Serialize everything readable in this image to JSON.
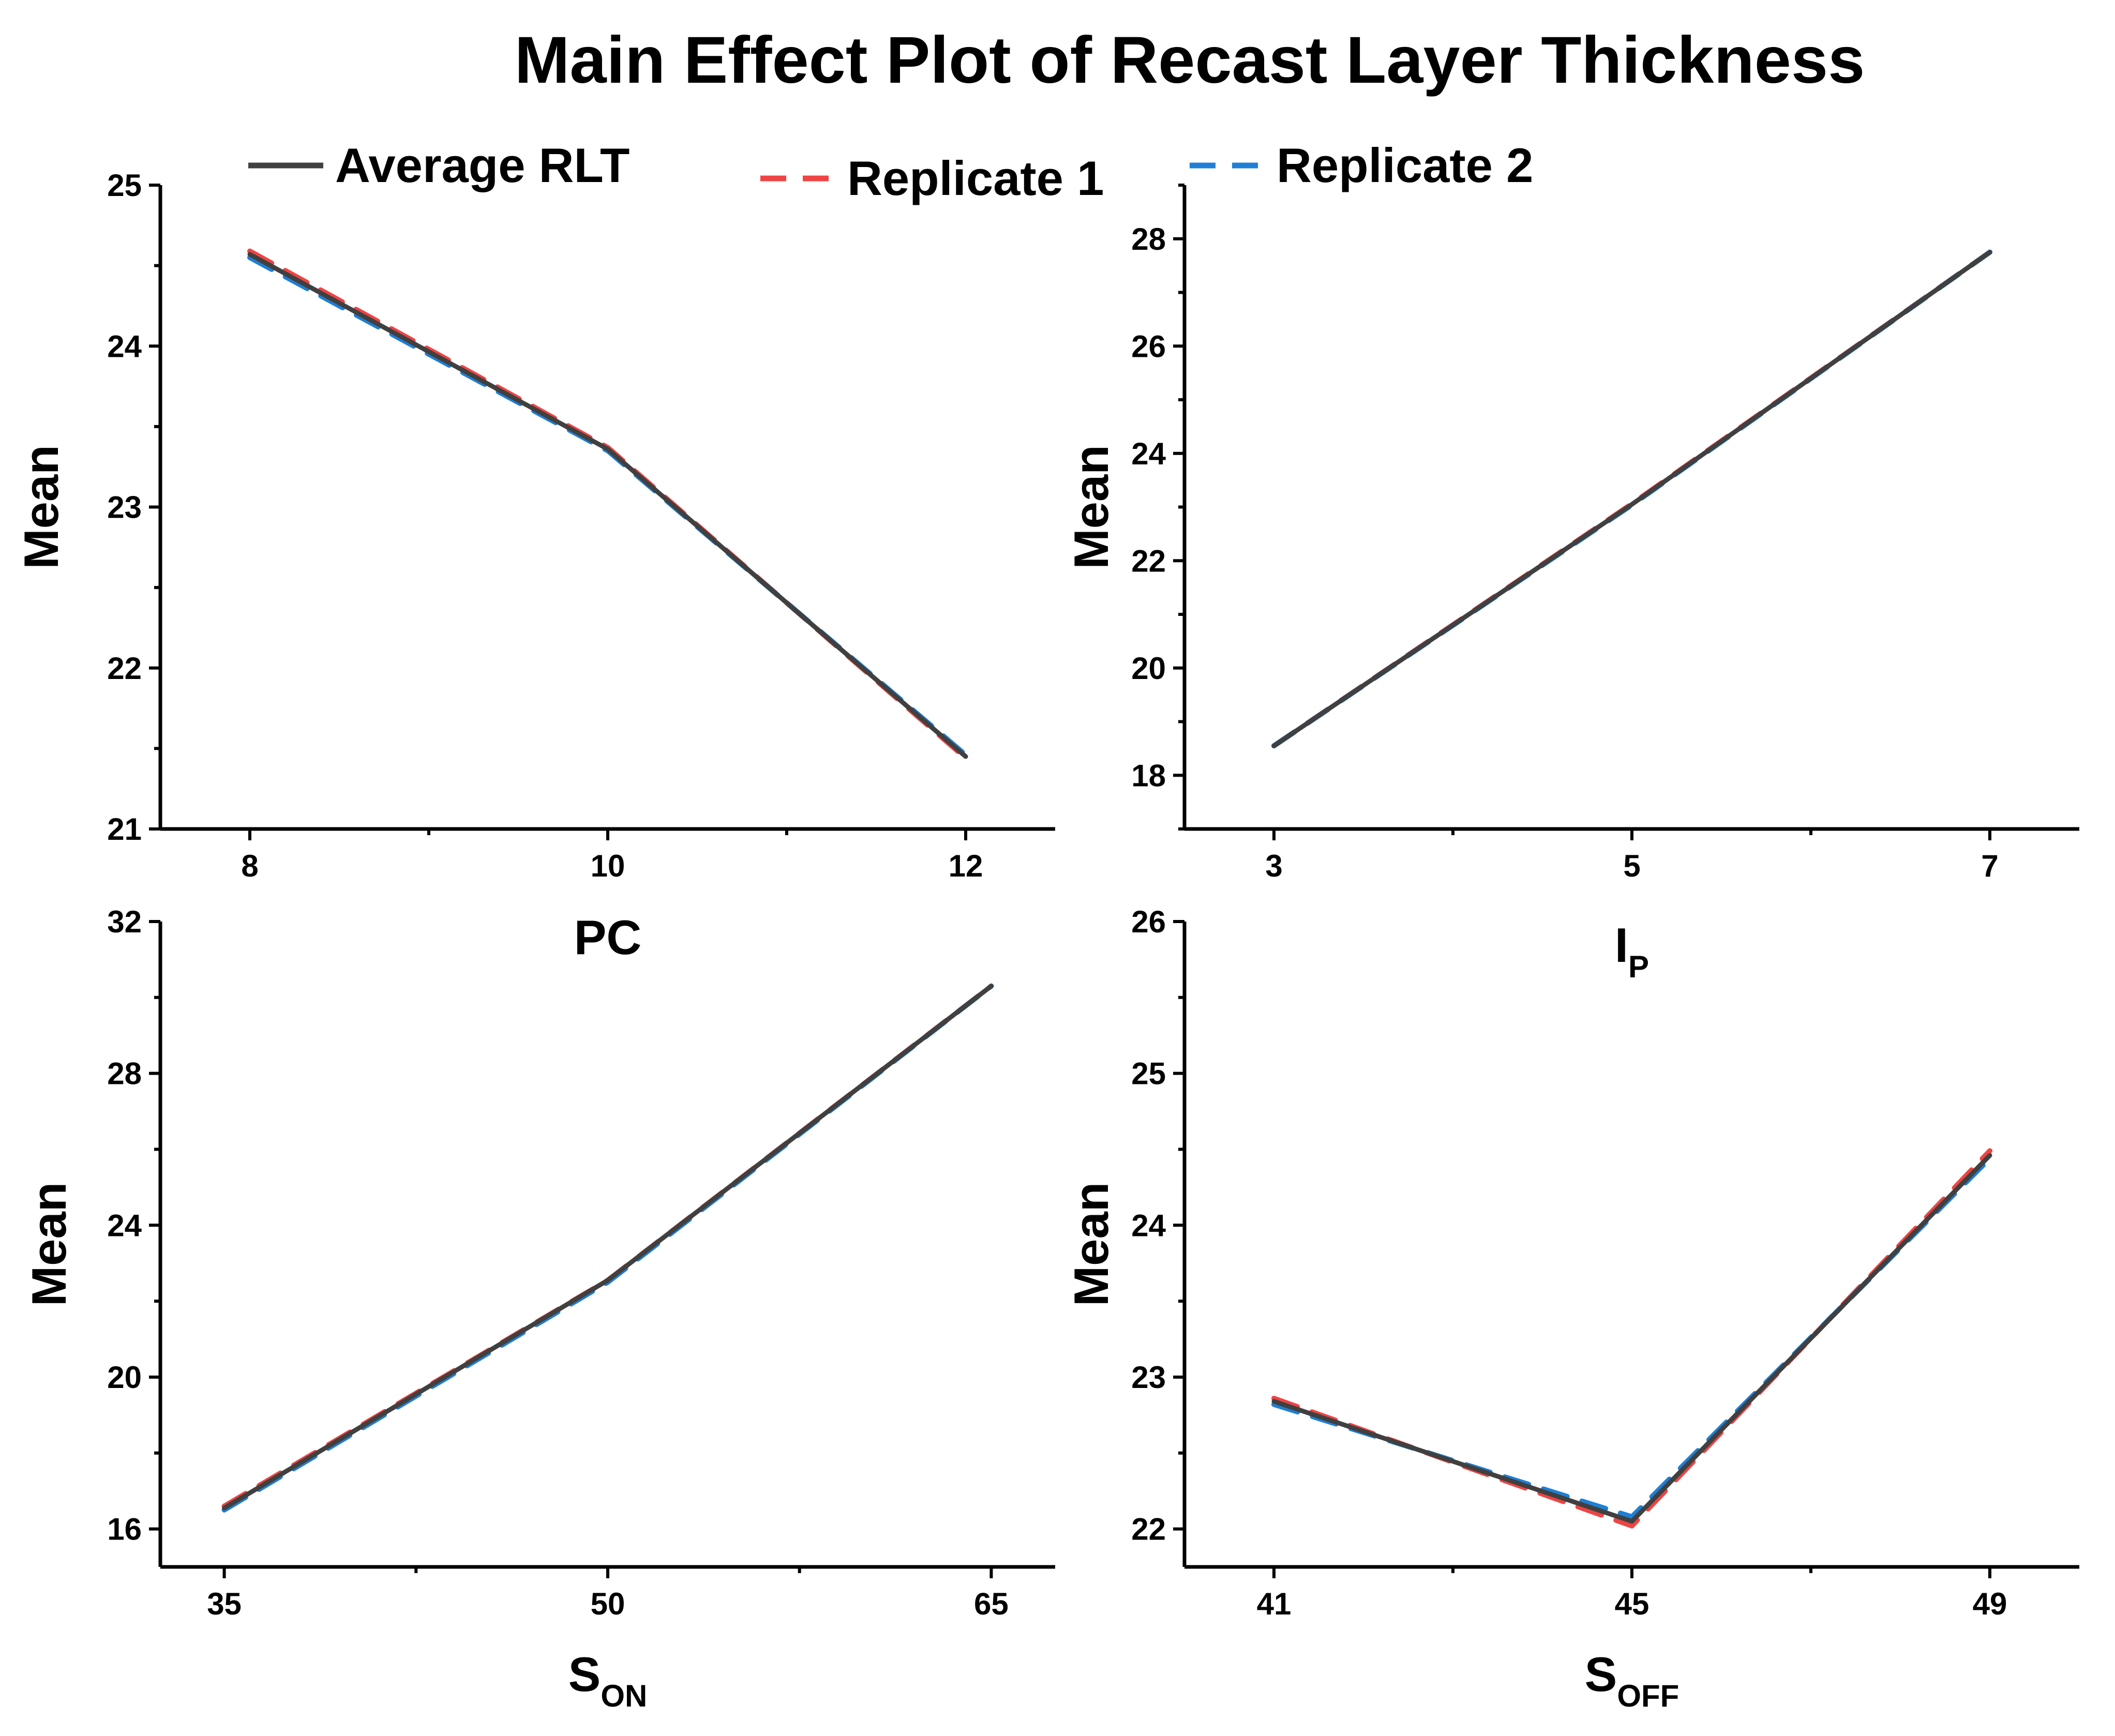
{
  "chart_data": {
    "type": "line",
    "title": "Main Effect Plot of Recast Layer Thickness",
    "legend": {
      "placement": "top",
      "entries": [
        {
          "name": "Average RLT",
          "color": "#404040",
          "style": "solid"
        },
        {
          "name": "Replicate 1",
          "color": "#ef4444",
          "style": "dashed"
        },
        {
          "name": "Replicate 2",
          "color": "#1e7fd6",
          "style": "dashed"
        }
      ]
    },
    "panels": [
      {
        "id": "pc",
        "xlabel": {
          "main": "PC",
          "sub": ""
        },
        "ylabel": "Mean",
        "x": [
          8,
          10,
          12
        ],
        "xticks": [
          "8",
          "10",
          "12"
        ],
        "xlim": [
          7.5,
          12.5
        ],
        "ylim": [
          21,
          25
        ],
        "yticks": [
          21,
          22,
          23,
          24,
          25
        ],
        "series": [
          {
            "name": "Average RLT",
            "values": [
              24.57,
              23.36,
              21.45
            ]
          },
          {
            "name": "Replicate 1",
            "values": [
              24.59,
              23.37,
              21.44
            ]
          },
          {
            "name": "Replicate 2",
            "values": [
              24.55,
              23.35,
              21.46
            ]
          }
        ]
      },
      {
        "id": "ip",
        "xlabel": {
          "main": "I",
          "sub": "P"
        },
        "ylabel": "Mean",
        "x": [
          3,
          5,
          7
        ],
        "xticks": [
          "3",
          "5",
          "7"
        ],
        "xlim": [
          2.5,
          7.5
        ],
        "ylim": [
          17,
          29
        ],
        "yticks": [
          18,
          20,
          22,
          24,
          26,
          28
        ],
        "series": [
          {
            "name": "Average RLT",
            "values": [
              18.55,
              23.05,
              27.75
            ]
          },
          {
            "name": "Replicate 1",
            "values": [
              18.55,
              23.06,
              27.75
            ]
          },
          {
            "name": "Replicate 2",
            "values": [
              18.55,
              23.04,
              27.75
            ]
          }
        ]
      },
      {
        "id": "son",
        "xlabel": {
          "main": "S",
          "sub": "ON"
        },
        "ylabel": "Mean",
        "x": [
          35,
          50,
          65
        ],
        "xticks": [
          "35",
          "50",
          "65"
        ],
        "xlim": [
          32.5,
          67.5
        ],
        "ylim": [
          15,
          32
        ],
        "yticks": [
          16,
          20,
          24,
          28,
          32
        ],
        "series": [
          {
            "name": "Average RLT",
            "values": [
              16.55,
              22.55,
              30.3
            ]
          },
          {
            "name": "Replicate 1",
            "values": [
              16.6,
              22.55,
              30.3
            ]
          },
          {
            "name": "Replicate 2",
            "values": [
              16.5,
              22.5,
              30.3
            ]
          }
        ]
      },
      {
        "id": "soff",
        "xlabel": {
          "main": "S",
          "sub": "OFF"
        },
        "ylabel": "Mean",
        "x": [
          41,
          45,
          49
        ],
        "xticks": [
          "41",
          "45",
          "49"
        ],
        "xlim": [
          40,
          50
        ],
        "ylim": [
          21.75,
          26
        ],
        "yticks": [
          22,
          23,
          24,
          25,
          26
        ],
        "series": [
          {
            "name": "Average RLT",
            "values": [
              22.84,
              22.05,
              24.46
            ]
          },
          {
            "name": "Replicate 1",
            "values": [
              22.86,
              22.02,
              24.49
            ]
          },
          {
            "name": "Replicate 2",
            "values": [
              22.82,
              22.08,
              24.44
            ]
          }
        ]
      }
    ]
  }
}
